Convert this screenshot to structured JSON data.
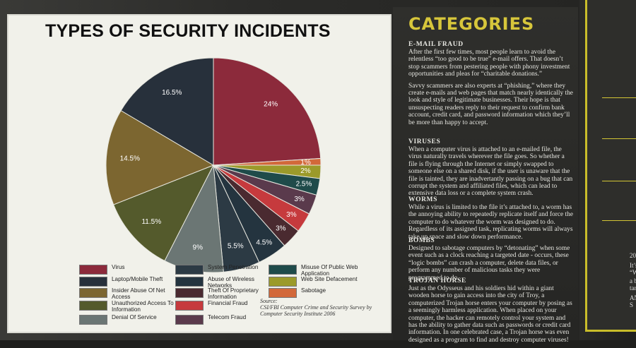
{
  "chart_data": {
    "type": "pie",
    "title": "TYPES OF SECURITY INCIDENTS",
    "slices": [
      {
        "name": "Virus",
        "value": 24,
        "label": "24%",
        "color": "#8c2a3b"
      },
      {
        "name": "Sabotage",
        "value": 1,
        "label": "1%",
        "color": "#d2683a"
      },
      {
        "name": "Web Site Defacement",
        "value": 2,
        "label": "2%",
        "color": "#9b9a2a"
      },
      {
        "name": "Misuse Of Public Web Application",
        "value": 2.5,
        "label": "2.5%",
        "color": "#1f4b4a"
      },
      {
        "name": "Telecom Fraud",
        "value": 3,
        "label": "3%",
        "color": "#5a3a4c"
      },
      {
        "name": "Financial Fraud",
        "value": 3,
        "label": "3%",
        "color": "#c63a3d"
      },
      {
        "name": "Theft Of Proprietary Information",
        "value": 3,
        "label": "3%",
        "color": "#4a2a30"
      },
      {
        "name": "Abuse of Wireless Networks",
        "value": 4.5,
        "label": "4.5%",
        "color": "#24343f"
      },
      {
        "name": "System Penetration",
        "value": 5.5,
        "label": "5.5%",
        "color": "#2c3a44"
      },
      {
        "name": "Denial Of Service",
        "value": 9,
        "label": "9%",
        "color": "#6b7674"
      },
      {
        "name": "Unauthorized Access To Information",
        "value": 11.5,
        "label": "11.5%",
        "color": "#545a2c"
      },
      {
        "name": "Insider Abuse Of Net Access",
        "value": 14.5,
        "label": "14.5%",
        "color": "#7c6630"
      },
      {
        "name": "Laptop/Mobile Theft",
        "value": 16.5,
        "label": "16.5%",
        "color": "#27303b"
      }
    ],
    "legend": [
      {
        "name": "Virus",
        "color": "#8c2a3b"
      },
      {
        "name": "Laptop/Mobile Theft",
        "color": "#27303b"
      },
      {
        "name": "Insider Abuse Of Net Access",
        "color": "#7c6630"
      },
      {
        "name": "Unauthorized Access To Information",
        "color": "#545a2c"
      },
      {
        "name": "Denial Of Service",
        "color": "#6b7674"
      },
      {
        "name": "System Penetration",
        "color": "#2c3a44"
      },
      {
        "name": "Abuse of Wireless Networks",
        "color": "#24343f"
      },
      {
        "name": "Theft Of Proprietary Information",
        "color": "#4a2a30"
      },
      {
        "name": "Financial Fraud",
        "color": "#c63a3d"
      },
      {
        "name": "Telecom Fraud",
        "color": "#5a3a4c"
      },
      {
        "name": "Misuse Of Public Web Application",
        "color": "#1f4b4a"
      },
      {
        "name": "Web Site Defacement",
        "color": "#9b9a2a"
      },
      {
        "name": "Sabotage",
        "color": "#d2683a"
      }
    ]
  },
  "source": {
    "label": "Source:",
    "text": "CSI/FBI Computer Crime and Security Survey by Computer Security Institute 2006"
  },
  "categories": {
    "title": "CATEGORIES",
    "sections": [
      {
        "heading": "E-MAIL FRAUD",
        "paragraphs": [
          "After the first few times, most people learn to avoid the relentless “too good to be true” e-mail offers. That doesn’t stop scammers from pestering people with phony investment opportunities and pleas for “charitable donations.”",
          "Savvy scammers are also experts at “phishing,” where they create e-mails and web pages that match nearly identically the look and style of legitimate businesses. Their hope is that unsuspecting readers reply to their request to confirm bank account, credit card, and password information which they’ll be more than happy to accept."
        ]
      },
      {
        "heading": "VIRUSES",
        "paragraphs": [
          "When a computer virus is attached to an e-mailed file, the virus naturally travels wherever the file goes. So whether a file is flying through the Internet or simply swapped to someone else on a shared disk, if the user is unaware that the file is tainted, they are inadvertantly passing on a bug that can corrupt the system and affiliated files, which can lead to extensive data loss or a complete system crash."
        ]
      },
      {
        "heading": "WORMS",
        "paragraphs": [
          "While a virus is limited to the file it’s attached to, a worm has the annoying ability to repeatedly replicate itself and force the computer to do whatever the worm was designed to do. Regardless of its assigned task, replicating worms will always take up space and slow down performance."
        ]
      },
      {
        "heading": "BOMBS",
        "paragraphs": [
          "Designed to sabotage computers by “detonating” when some event such as a clock reaching a targeted date - occurs, these “logic bombs” can crash a computer, delete data files, or perform any number of malicious tasks they were programmed to do."
        ]
      },
      {
        "heading": "TROJAN HORSE",
        "paragraphs": [
          "Just as the Odysseus and his soldiers hid within a giant wooden horse to gain access into the city of Troy, a computerized Trojan horse enters your computer by posing as a seemingly harmless application. When placed on your computer, the hacker can remotely control your system and has the ability to gather data such as passwords or credit card information. In one celebrated case, a Trojan horse was even designed as a program to find and destroy computer viruses!"
        ]
      }
    ]
  },
  "next_board": {
    "fragments": [
      "20",
      "It’s",
      "“W",
      "a b",
      "targe",
      "AND S"
    ]
  }
}
